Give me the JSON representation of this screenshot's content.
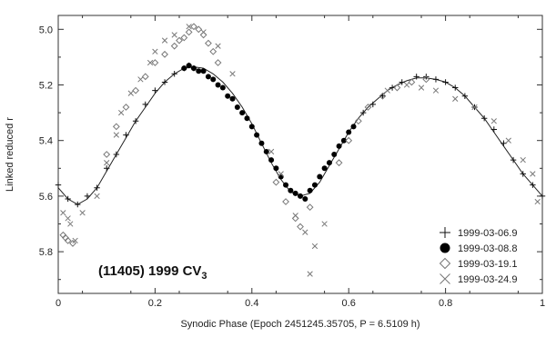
{
  "chart_data": {
    "type": "scatter",
    "title": "",
    "annotation": {
      "main": "(11405) 1999 CV",
      "subscript": "3"
    },
    "xlabel": "Synodic Phase (Epoch 2451245.35705, P = 6.5109 h)",
    "ylabel": "Linked reduced r",
    "xlim": [
      0,
      1
    ],
    "ylim": [
      5.95,
      4.95
    ],
    "y_inverted": true,
    "grid": false,
    "legend_position": "bottom-right",
    "xticks": [
      {
        "value": 0,
        "label": "0"
      },
      {
        "value": 0.2,
        "label": "0.2"
      },
      {
        "value": 0.4,
        "label": "0.4"
      },
      {
        "value": 0.6,
        "label": "0.6"
      },
      {
        "value": 0.8,
        "label": "0.8"
      },
      {
        "value": 1,
        "label": "1"
      }
    ],
    "yticks": [
      {
        "value": 5.0,
        "label": "5.0"
      },
      {
        "value": 5.2,
        "label": "5.2"
      },
      {
        "value": 5.4,
        "label": "5.4"
      },
      {
        "value": 5.6,
        "label": "5.6"
      },
      {
        "value": 5.8,
        "label": "5.8"
      }
    ],
    "fit_curve": {
      "x": [
        0.0,
        0.02,
        0.04,
        0.06,
        0.08,
        0.1,
        0.12,
        0.14,
        0.16,
        0.18,
        0.2,
        0.22,
        0.24,
        0.26,
        0.28,
        0.3,
        0.32,
        0.34,
        0.36,
        0.38,
        0.4,
        0.42,
        0.44,
        0.46,
        0.48,
        0.5,
        0.52,
        0.54,
        0.56,
        0.58,
        0.6,
        0.62,
        0.64,
        0.66,
        0.68,
        0.7,
        0.72,
        0.74,
        0.76,
        0.78,
        0.8,
        0.82,
        0.84,
        0.86,
        0.88,
        0.9,
        0.92,
        0.94,
        0.96,
        0.98,
        1.0
      ],
      "y": [
        5.57,
        5.61,
        5.63,
        5.61,
        5.57,
        5.51,
        5.45,
        5.39,
        5.33,
        5.28,
        5.23,
        5.19,
        5.16,
        5.14,
        5.135,
        5.14,
        5.16,
        5.19,
        5.23,
        5.28,
        5.34,
        5.41,
        5.48,
        5.54,
        5.585,
        5.6,
        5.59,
        5.55,
        5.49,
        5.43,
        5.37,
        5.32,
        5.28,
        5.25,
        5.22,
        5.2,
        5.185,
        5.175,
        5.175,
        5.18,
        5.19,
        5.21,
        5.24,
        5.28,
        5.32,
        5.37,
        5.42,
        5.47,
        5.52,
        5.56,
        5.6
      ]
    },
    "series": [
      {
        "name": "1999-03-06.9",
        "marker": "plus",
        "x": [
          0.0,
          0.02,
          0.04,
          0.06,
          0.08,
          0.1,
          0.12,
          0.14,
          0.16,
          0.18,
          0.2,
          0.22,
          0.24,
          0.26,
          0.27,
          0.28,
          0.74,
          0.76,
          0.78,
          0.8,
          0.82,
          0.84,
          0.86,
          0.88,
          0.9,
          0.92,
          0.94,
          0.96,
          0.98,
          1.0,
          0.71,
          0.69,
          0.67,
          0.65,
          0.63
        ],
        "y": [
          5.56,
          5.61,
          5.63,
          5.6,
          5.57,
          5.5,
          5.45,
          5.38,
          5.33,
          5.27,
          5.22,
          5.19,
          5.16,
          5.14,
          5.13,
          5.14,
          5.17,
          5.17,
          5.18,
          5.19,
          5.21,
          5.24,
          5.28,
          5.32,
          5.36,
          5.41,
          5.47,
          5.52,
          5.56,
          5.6,
          5.19,
          5.21,
          5.24,
          5.27,
          5.3
        ]
      },
      {
        "name": "1999-03-08.8",
        "marker": "filled-circle",
        "x": [
          0.26,
          0.27,
          0.28,
          0.29,
          0.3,
          0.31,
          0.32,
          0.33,
          0.34,
          0.35,
          0.36,
          0.37,
          0.38,
          0.39,
          0.4,
          0.41,
          0.42,
          0.43,
          0.44,
          0.45,
          0.46,
          0.47,
          0.48,
          0.49,
          0.5,
          0.51,
          0.52,
          0.53,
          0.54,
          0.55,
          0.56,
          0.57,
          0.58,
          0.59,
          0.6,
          0.61
        ],
        "y": [
          5.14,
          5.13,
          5.14,
          5.15,
          5.15,
          5.17,
          5.18,
          5.2,
          5.21,
          5.24,
          5.25,
          5.28,
          5.3,
          5.32,
          5.35,
          5.38,
          5.41,
          5.44,
          5.47,
          5.5,
          5.53,
          5.56,
          5.58,
          5.59,
          5.6,
          5.61,
          5.58,
          5.56,
          5.53,
          5.5,
          5.48,
          5.45,
          5.42,
          5.4,
          5.37,
          5.35
        ]
      },
      {
        "name": "1999-03-19.1",
        "marker": "open-diamond",
        "x": [
          0.01,
          0.015,
          0.02,
          0.03,
          0.1,
          0.12,
          0.14,
          0.16,
          0.18,
          0.2,
          0.22,
          0.24,
          0.25,
          0.26,
          0.27,
          0.28,
          0.29,
          0.3,
          0.31,
          0.32,
          0.33,
          0.45,
          0.47,
          0.49,
          0.5,
          0.52,
          0.58,
          0.6,
          0.62,
          0.64,
          0.67,
          0.7,
          0.73,
          0.76
        ],
        "y": [
          5.74,
          5.75,
          5.76,
          5.77,
          5.45,
          5.35,
          5.28,
          5.22,
          5.17,
          5.12,
          5.09,
          5.06,
          5.04,
          5.03,
          5.01,
          4.99,
          5.0,
          5.02,
          5.05,
          5.08,
          5.12,
          5.55,
          5.62,
          5.68,
          5.71,
          5.64,
          5.48,
          5.4,
          5.33,
          5.28,
          5.24,
          5.21,
          5.19,
          5.18
        ]
      },
      {
        "name": "1999-03-24.9",
        "marker": "x",
        "x": [
          0.01,
          0.02,
          0.025,
          0.035,
          0.05,
          0.08,
          0.1,
          0.12,
          0.13,
          0.15,
          0.17,
          0.19,
          0.2,
          0.22,
          0.24,
          0.27,
          0.3,
          0.33,
          0.36,
          0.44,
          0.46,
          0.49,
          0.51,
          0.52,
          0.53,
          0.55,
          0.68,
          0.72,
          0.75,
          0.78,
          0.82,
          0.86,
          0.9,
          0.93,
          0.96,
          0.98,
          0.99
        ],
        "y": [
          5.66,
          5.68,
          5.7,
          5.76,
          5.66,
          5.6,
          5.48,
          5.38,
          5.3,
          5.23,
          5.18,
          5.12,
          5.08,
          5.04,
          5.02,
          4.99,
          5.01,
          5.06,
          5.16,
          5.44,
          5.52,
          5.67,
          5.73,
          5.88,
          5.78,
          5.7,
          5.22,
          5.2,
          5.21,
          5.22,
          5.25,
          5.28,
          5.33,
          5.4,
          5.47,
          5.52,
          5.62
        ]
      }
    ]
  },
  "colors": {
    "plus": "#111111",
    "filled": "#000000",
    "open": "#777777",
    "x": "#777777",
    "curve": "#222222",
    "axis": "#333333"
  }
}
